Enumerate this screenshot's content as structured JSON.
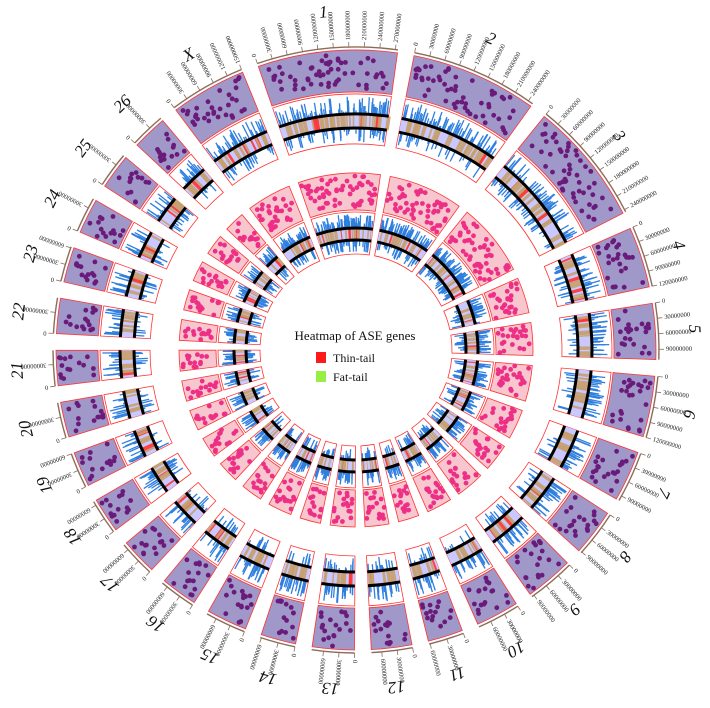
{
  "legend": {
    "title": "Heatmap of ASE genes",
    "items": [
      {
        "label": "Thin-tail",
        "color": "#ff1a1a"
      },
      {
        "label": "Fat-tail",
        "color": "#99ee44"
      }
    ]
  },
  "colors": {
    "outer_points_bg": "#9f98c9",
    "outer_points": "#6a1b7a",
    "inner_points_bg": "#f8c6cf",
    "inner_points": "#ee2f86",
    "histogram": "#2f7fe0",
    "track_bg": "#c9c9ff",
    "heat_band": "#c7a070",
    "dark_line": "#000000",
    "frame": "#ff3333"
  },
  "chromosomes": [
    {
      "id": "1",
      "len": 275000000,
      "ticks": [
        "0",
        "30000000",
        "60000000",
        "90000000",
        "120000000",
        "150000000",
        "180000000",
        "210000000",
        "240000000",
        "270000000"
      ]
    },
    {
      "id": "2",
      "len": 250000000,
      "ticks": [
        "0",
        "30000000",
        "60000000",
        "90000000",
        "120000000",
        "150000000",
        "180000000",
        "210000000",
        "240000000"
      ]
    },
    {
      "id": "3",
      "len": 245000000,
      "ticks": [
        "0",
        "30000000",
        "60000000",
        "90000000",
        "120000000",
        "150000000",
        "180000000",
        "210000000",
        "240000000"
      ]
    },
    {
      "id": "4",
      "len": 120000000,
      "ticks": [
        "0",
        "30000000",
        "60000000",
        "90000000",
        "120000000"
      ]
    },
    {
      "id": "5",
      "len": 110000000,
      "ticks": [
        "0",
        "30000000",
        "60000000",
        "90000000"
      ]
    },
    {
      "id": "6",
      "len": 120000000,
      "ticks": [
        "0",
        "30000000",
        "60000000",
        "90000000",
        "120000000"
      ]
    },
    {
      "id": "7",
      "len": 100000000,
      "ticks": [
        "0",
        "30000000",
        "60000000",
        "90000000"
      ]
    },
    {
      "id": "8",
      "len": 92000000,
      "ticks": [
        "0",
        "30000000",
        "60000000",
        "90000000"
      ]
    },
    {
      "id": "9",
      "len": 95000000,
      "ticks": [
        "0",
        "30000000",
        "60000000",
        "90000000"
      ]
    },
    {
      "id": "10",
      "len": 85000000,
      "ticks": [
        "0",
        "30000000",
        "60000000"
      ]
    },
    {
      "id": "11",
      "len": 62000000,
      "ticks": [
        "0",
        "30000000",
        "60000000"
      ]
    },
    {
      "id": "12",
      "len": 80000000,
      "ticks": [
        "0",
        "30000000",
        "60000000"
      ]
    },
    {
      "id": "13",
      "len": 83000000,
      "ticks": [
        "0",
        "30000000",
        "60000000"
      ]
    },
    {
      "id": "14",
      "len": 62000000,
      "ticks": [
        "0",
        "30000000",
        "60000000"
      ]
    },
    {
      "id": "15",
      "len": 80000000,
      "ticks": [
        "0",
        "30000000",
        "60000000"
      ]
    },
    {
      "id": "16",
      "len": 72000000,
      "ticks": [
        "0",
        "30000000",
        "60000000"
      ]
    },
    {
      "id": "17",
      "len": 72000000,
      "ticks": [
        "0",
        "30000000",
        "60000000"
      ]
    },
    {
      "id": "18",
      "len": 68000000,
      "ticks": [
        "0",
        "30000000",
        "60000000"
      ]
    },
    {
      "id": "19",
      "len": 60000000,
      "ticks": [
        "0",
        "30000000",
        "60000000"
      ]
    },
    {
      "id": "20",
      "len": 51000000,
      "ticks": [
        "0",
        "30000000"
      ]
    },
    {
      "id": "21",
      "len": 50000000,
      "ticks": [
        "0",
        "30000000"
      ]
    },
    {
      "id": "22",
      "len": 51000000,
      "ticks": [
        "0",
        "30000000"
      ]
    },
    {
      "id": "23",
      "len": 62000000,
      "ticks": [
        "0",
        "30000000",
        "60000000"
      ]
    },
    {
      "id": "24",
      "len": 42000000,
      "ticks": [
        "0",
        "30000000"
      ]
    },
    {
      "id": "25",
      "len": 45000000,
      "ticks": [
        "0",
        "30000000"
      ]
    },
    {
      "id": "26",
      "len": 51000000,
      "ticks": [
        "0",
        "30000000"
      ]
    },
    {
      "id": "X",
      "len": 150000000,
      "ticks": [
        "0",
        "30000000",
        "60000000",
        "90000000",
        "120000000",
        "150000000"
      ]
    }
  ]
}
